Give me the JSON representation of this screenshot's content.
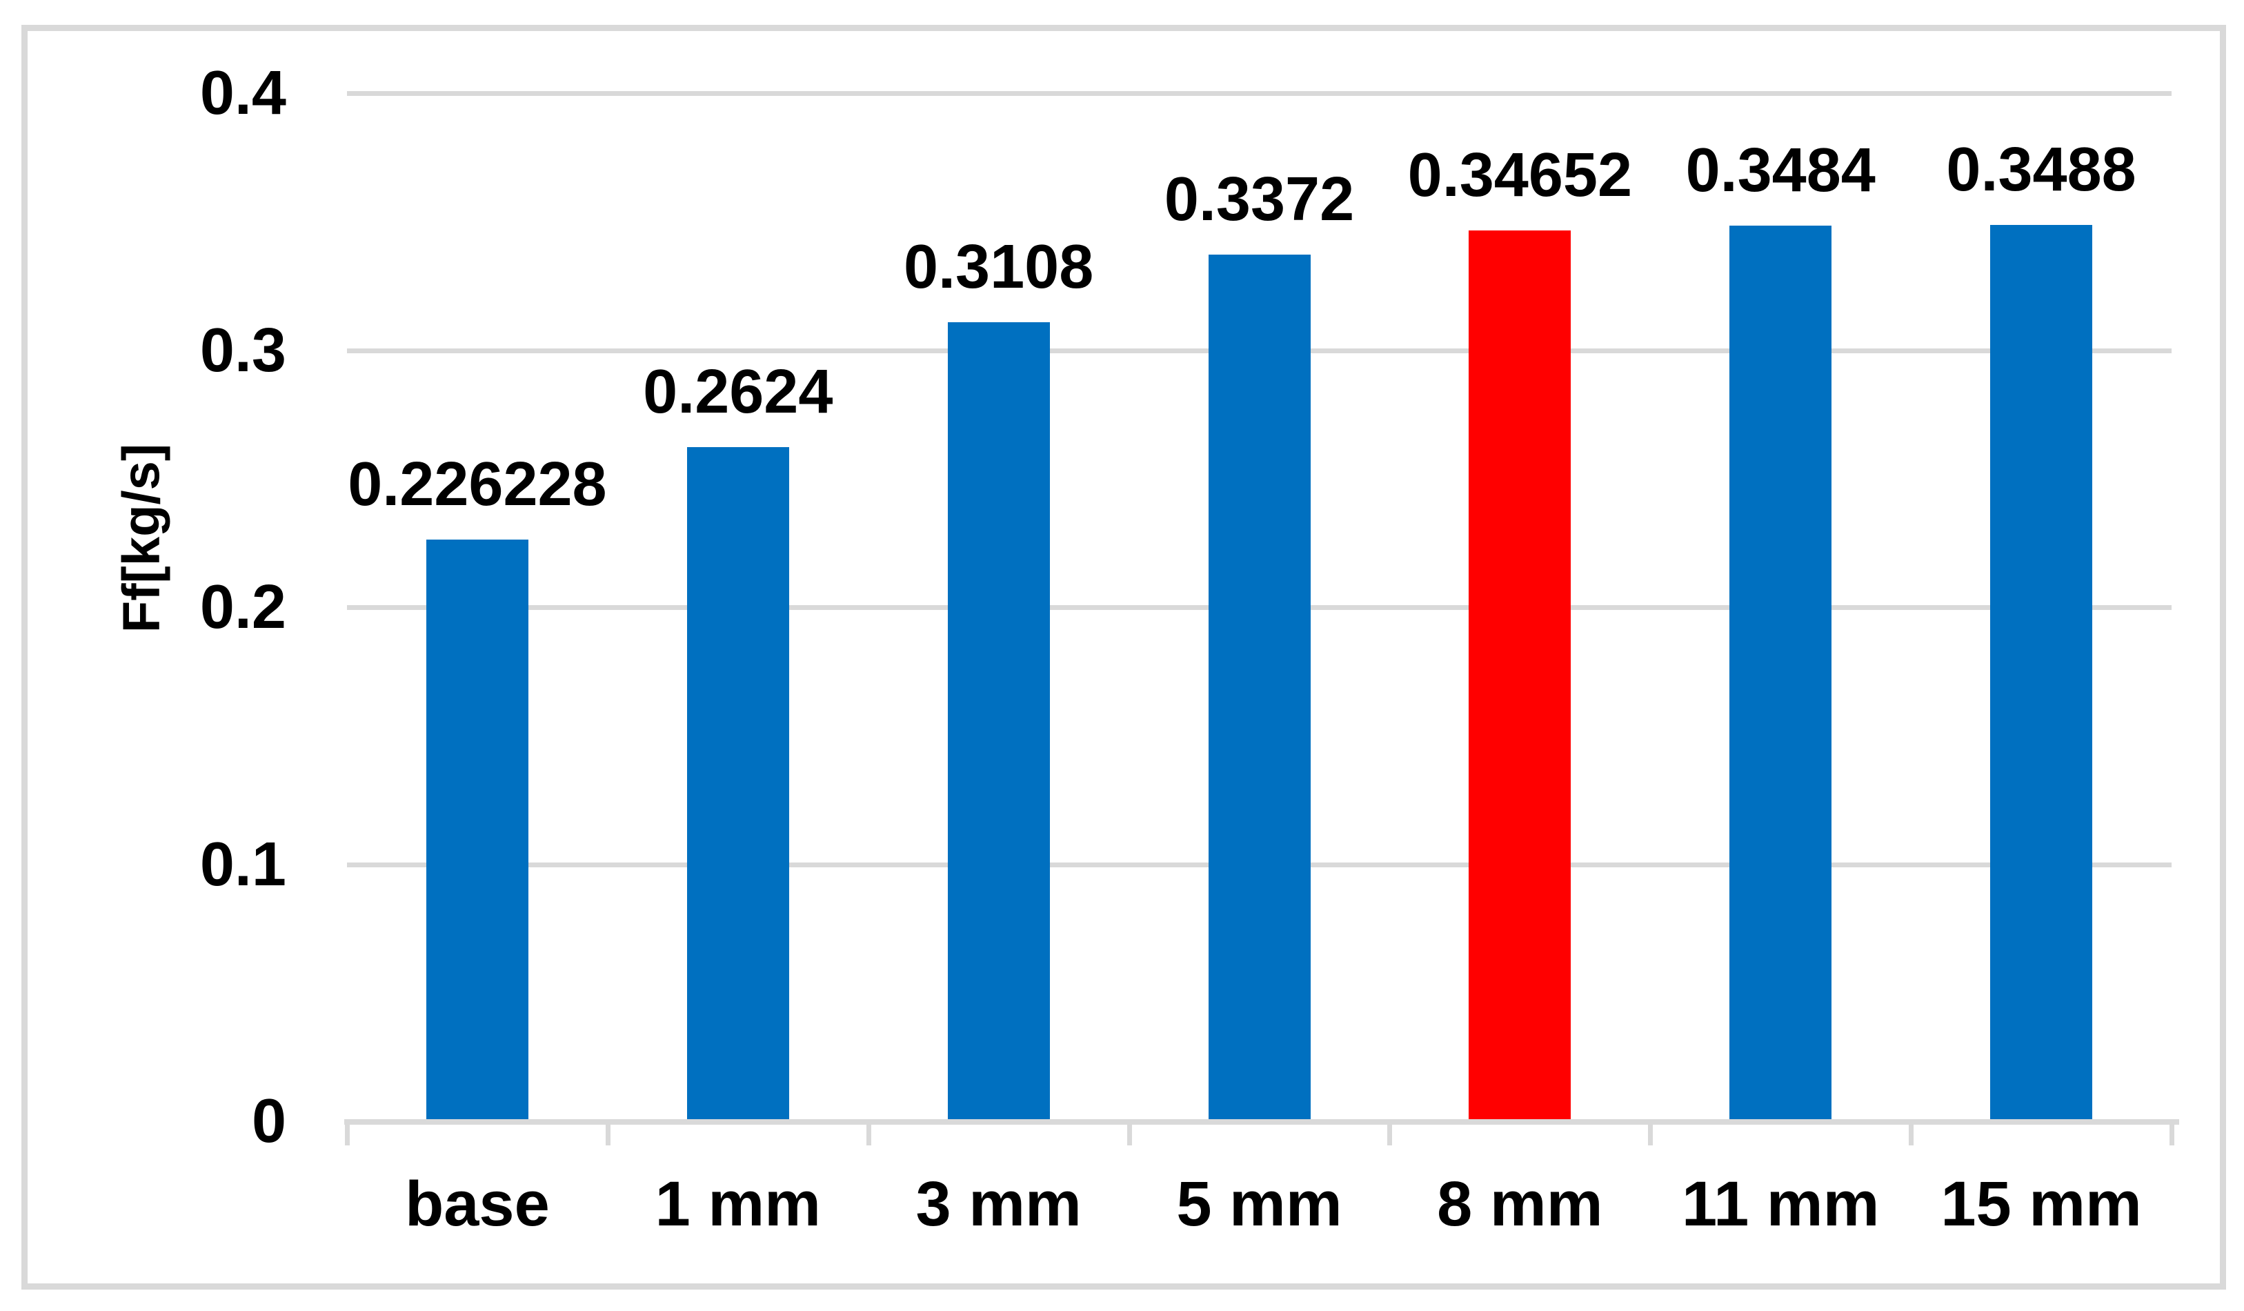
{
  "chart_data": {
    "type": "bar",
    "title": "",
    "xlabel": "",
    "ylabel": "Ff[kg/s]",
    "categories": [
      "base",
      "1 mm",
      "3 mm",
      "5 mm",
      "8 mm",
      "11 mm",
      "15 mm"
    ],
    "values": [
      0.226228,
      0.2624,
      0.3108,
      0.3372,
      0.34652,
      0.3484,
      0.3488
    ],
    "value_labels": [
      "0.226228",
      "0.2624",
      "0.3108",
      "0.3372",
      "0.34652",
      "0.3484",
      "0.3488"
    ],
    "highlighted_category": "8 mm",
    "highlight_index": 4,
    "ylim": [
      0,
      0.4
    ],
    "yticks": [
      0,
      0.1,
      0.2,
      0.3,
      0.4
    ],
    "ytick_labels": [
      "0",
      "0.1",
      "0.2",
      "0.3",
      "0.4"
    ],
    "grid": true,
    "legend": "none",
    "colors": {
      "bar_default": "#0070c0",
      "bar_highlight": "#ff0000",
      "gridline": "#d9d9d9",
      "axis_line": "#d9d9d9",
      "frame_border": "#d9d9d9",
      "label_text": "#000000",
      "background": "#ffffff"
    }
  }
}
